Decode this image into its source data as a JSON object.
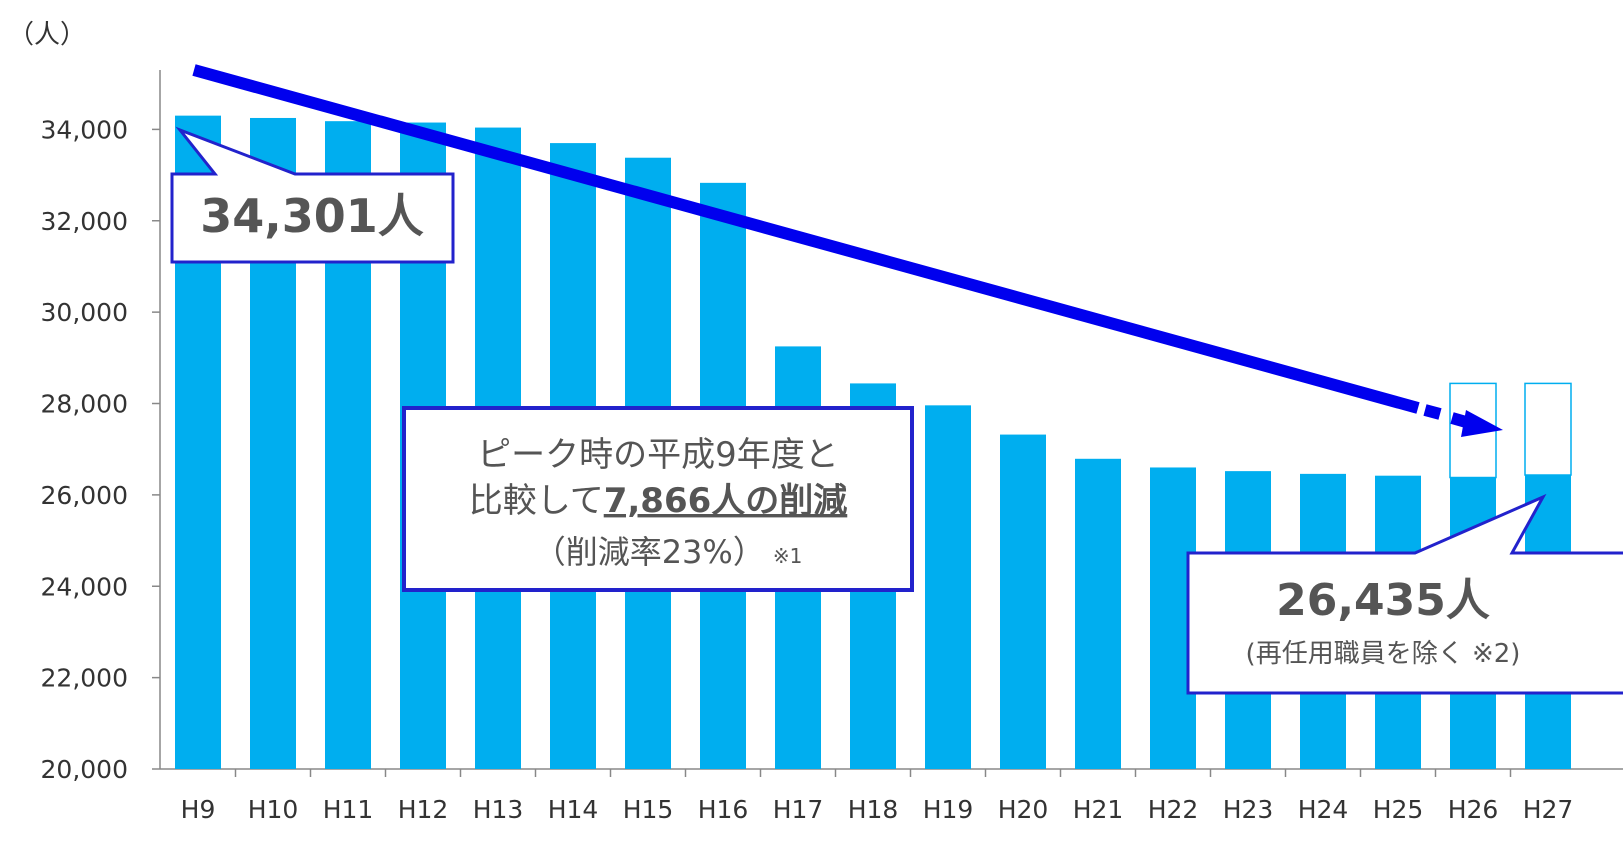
{
  "chart_data": {
    "type": "bar",
    "unit_label": "（人）",
    "categories": [
      "H9",
      "H10",
      "H11",
      "H12",
      "H13",
      "H14",
      "H15",
      "H16",
      "H17",
      "H18",
      "H19",
      "H20",
      "H21",
      "H22",
      "H23",
      "H24",
      "H25",
      "H26",
      "H27"
    ],
    "values": [
      34301,
      34250,
      34180,
      34150,
      34040,
      33700,
      33380,
      32830,
      29250,
      28440,
      27960,
      27320,
      26790,
      26600,
      26520,
      26460,
      26420,
      26380,
      26435
    ],
    "reemployed_top": [
      null,
      null,
      null,
      null,
      null,
      null,
      null,
      null,
      null,
      null,
      null,
      null,
      null,
      null,
      null,
      null,
      null,
      28440,
      28440
    ],
    "ylim": [
      20000,
      35300
    ],
    "yticks": [
      20000,
      22000,
      24000,
      26000,
      28000,
      30000,
      32000,
      34000
    ],
    "ytick_labels": [
      "20,000",
      "22,000",
      "24,000",
      "26,000",
      "28,000",
      "30,000",
      "32,000",
      "34,000"
    ],
    "bar_color": "#00AEEF",
    "arrow_color": "#0000EE",
    "callout_border_color": "#2222CC",
    "annotations": {
      "peak": {
        "text": "34,301人"
      },
      "middle": {
        "line1": "ピーク時の平成9年度と",
        "line2_prefix": "比較して",
        "line2_emph": "7,866人の削減",
        "line3": "（削減率23%）",
        "line3_note": "※1"
      },
      "latest": {
        "value": "26,435人",
        "note": "(再任用職員を除く ※2)"
      }
    }
  }
}
